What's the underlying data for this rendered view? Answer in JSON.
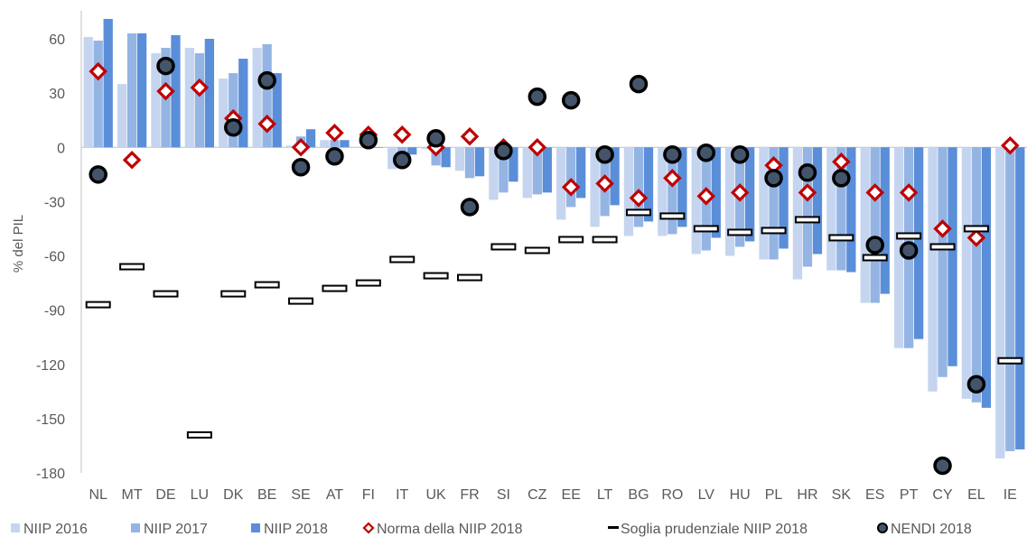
{
  "chart_data": {
    "type": "bar",
    "ylabel": "% del PIL",
    "ylim": [
      -180,
      75
    ],
    "yticks": [
      60,
      30,
      0,
      -30,
      -60,
      -90,
      -120,
      -150,
      -180
    ],
    "categories": [
      "NL",
      "MT",
      "DE",
      "LU",
      "DK",
      "BE",
      "SE",
      "AT",
      "FI",
      "IT",
      "UK",
      "FR",
      "SI",
      "CZ",
      "EE",
      "LT",
      "BG",
      "RO",
      "LV",
      "HU",
      "PL",
      "HR",
      "SK",
      "ES",
      "PT",
      "CY",
      "EL",
      "IE"
    ],
    "series": [
      {
        "name": "NIIP 2016",
        "kind": "bar",
        "color": "#c5d5ef",
        "values": [
          61,
          35,
          52,
          55,
          38,
          55,
          1,
          4,
          0,
          -12,
          -1,
          -13,
          -29,
          -28,
          -40,
          -44,
          -49,
          -49,
          -59,
          -60,
          -62,
          -73,
          -68,
          -86,
          -111,
          -135,
          -139,
          -172
        ]
      },
      {
        "name": "NIIP 2017",
        "kind": "bar",
        "color": "#94b4e3",
        "values": [
          59,
          63,
          55,
          52,
          41,
          57,
          6,
          4,
          0,
          -6,
          -10,
          -17,
          -25,
          -26,
          -33,
          -38,
          -44,
          -48,
          -57,
          -55,
          -62,
          -66,
          -68,
          -86,
          -111,
          -127,
          -141,
          -168
        ]
      },
      {
        "name": "NIIP 2018",
        "kind": "bar",
        "color": "#5a8ed8",
        "values": [
          71,
          63,
          62,
          60,
          49,
          41,
          10,
          4,
          0,
          -4,
          -11,
          -16,
          -19,
          -25,
          -28,
          -32,
          -41,
          -44,
          -50,
          -52,
          -56,
          -59,
          -69,
          -81,
          -106,
          -121,
          -144,
          -167
        ]
      },
      {
        "name": "Norma della NIIP 2018",
        "kind": "marker-diamond",
        "color": "#c00000",
        "values": [
          42,
          -7,
          31,
          33,
          16,
          13,
          0,
          8,
          7,
          7,
          0,
          6,
          0,
          0,
          -22,
          -20,
          -28,
          -17,
          -27,
          -25,
          -10,
          -25,
          -8,
          -25,
          -25,
          -45,
          -50,
          1
        ]
      },
      {
        "name": "Soglia prudenziale NIIP 2018",
        "kind": "marker-dash",
        "color": "#000000",
        "values": [
          -87,
          -66,
          -81,
          -159,
          -81,
          -76,
          -85,
          -78,
          -75,
          -62,
          -71,
          -72,
          -55,
          -57,
          -51,
          -51,
          -36,
          -38,
          -45,
          -47,
          -46,
          -40,
          -50,
          -61,
          -49,
          -55,
          -45,
          -118
        ]
      },
      {
        "name": "NENDI 2018",
        "kind": "marker-circle",
        "color": "#000000",
        "values": [
          -15,
          null,
          45,
          null,
          11,
          37,
          -11,
          -5,
          4,
          -7,
          5,
          -33,
          -2,
          28,
          26,
          -4,
          35,
          -4,
          -3,
          -4,
          -17,
          -14,
          -17,
          -54,
          -57,
          -176,
          -131,
          null
        ]
      }
    ]
  }
}
